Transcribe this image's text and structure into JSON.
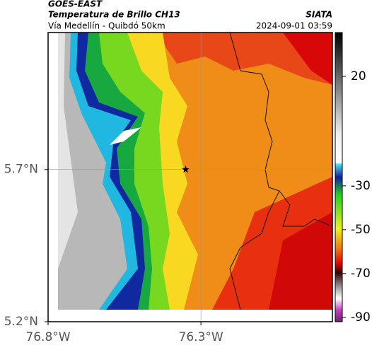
{
  "header": {
    "satellite": "GOES-EAST",
    "product": "Temperatura de Brillo CH13",
    "organization": "SIATA",
    "location": "Vía Medellín - Quibdó 50km",
    "datetime": "2024-09-01 03:59"
  },
  "map": {
    "xlim": [
      -76.8,
      -75.87
    ],
    "ylim": [
      5.2,
      6.15
    ],
    "xticks": [
      {
        "value": -76.8,
        "label": "76.8°W"
      },
      {
        "value": -76.3,
        "label": "76.3°W"
      }
    ],
    "yticks": [
      {
        "value": 5.2,
        "label": "5.2°N"
      },
      {
        "value": 5.7,
        "label": "5.7°N"
      }
    ],
    "marker": {
      "lon": -76.35,
      "lat": 5.7
    }
  },
  "colorbar": {
    "clim": [
      -92,
      40
    ],
    "ticks": [
      20,
      -30,
      -50,
      -70,
      -90
    ]
  }
}
